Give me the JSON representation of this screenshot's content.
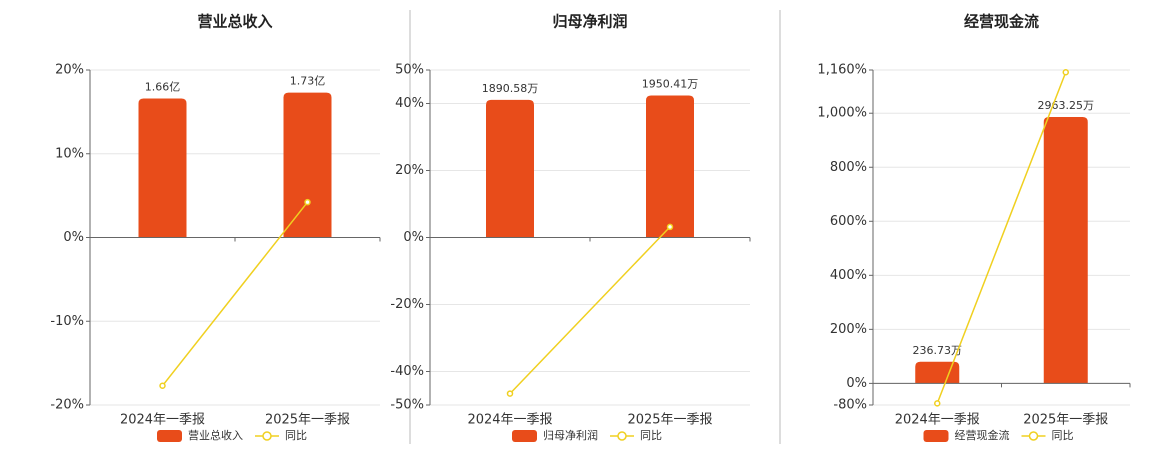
{
  "chart_data": [
    {
      "type": "bar",
      "title": "营业总收入",
      "categories": [
        "2024年一季报",
        "2025年一季报"
      ],
      "series": [
        {
          "name": "营业总收入",
          "color": "#e84c1a",
          "values": [
            1.66,
            1.73
          ],
          "value_labels": [
            "1.66亿",
            "1.73亿"
          ],
          "axis": "y2"
        },
        {
          "name": "同比",
          "color": "#f0d020",
          "type": "line",
          "values": [
            -17.7,
            4.22
          ]
        }
      ],
      "ylim": [
        -20,
        20
      ],
      "yticks": [
        {
          "value": -20,
          "label": "-20%"
        },
        {
          "value": -10,
          "label": "-10%"
        },
        {
          "value": 0,
          "label": "0%"
        },
        {
          "value": 10,
          "label": "10%"
        },
        {
          "value": 20,
          "label": "20%"
        }
      ],
      "y2lim": [
        -2,
        2
      ],
      "grid": true
    },
    {
      "type": "bar",
      "title": "归母净利润",
      "categories": [
        "2024年一季报",
        "2025年一季报"
      ],
      "series": [
        {
          "name": "归母净利润",
          "color": "#e84c1a",
          "values": [
            1890.58,
            1950.41
          ],
          "value_labels": [
            "1890.58万",
            "1950.41万"
          ],
          "axis": "y2"
        },
        {
          "name": "同比",
          "color": "#f0d020",
          "type": "line",
          "values": [
            -46.6,
            3.16
          ]
        }
      ],
      "ylim": [
        -50,
        50
      ],
      "yticks": [
        {
          "value": -50,
          "label": "-50%"
        },
        {
          "value": -40,
          "label": "-40%"
        },
        {
          "value": -20,
          "label": "-20%"
        },
        {
          "value": 0,
          "label": "0%"
        },
        {
          "value": 20,
          "label": "20%"
        },
        {
          "value": 40,
          "label": "40%"
        },
        {
          "value": 50,
          "label": "50%"
        }
      ],
      "y2lim": [
        -2300,
        2300
      ],
      "grid": true
    },
    {
      "type": "bar",
      "title": "经营现金流",
      "categories": [
        "2024年一季报",
        "2025年一季报"
      ],
      "series": [
        {
          "name": "经营现金流",
          "color": "#e84c1a",
          "values": [
            236.73,
            2963.25
          ],
          "value_labels": [
            "236.73万",
            "2963.25万"
          ],
          "axis": "y2"
        },
        {
          "name": "同比",
          "color": "#f0d020",
          "type": "line",
          "values": [
            -74,
            1151.7
          ]
        }
      ],
      "ylim": [
        -80,
        1160
      ],
      "yticks": [
        {
          "value": -80,
          "label": "-80%"
        },
        {
          "value": 0,
          "label": "0%"
        },
        {
          "value": 200,
          "label": "200%"
        },
        {
          "value": 400,
          "label": "400%"
        },
        {
          "value": 600,
          "label": "600%"
        },
        {
          "value": 800,
          "label": "800%"
        },
        {
          "value": 1000,
          "label": "1,000%"
        },
        {
          "value": 1160,
          "label": "1,160%"
        }
      ],
      "y2lim": [
        -245,
        3487
      ],
      "grid": true
    }
  ]
}
